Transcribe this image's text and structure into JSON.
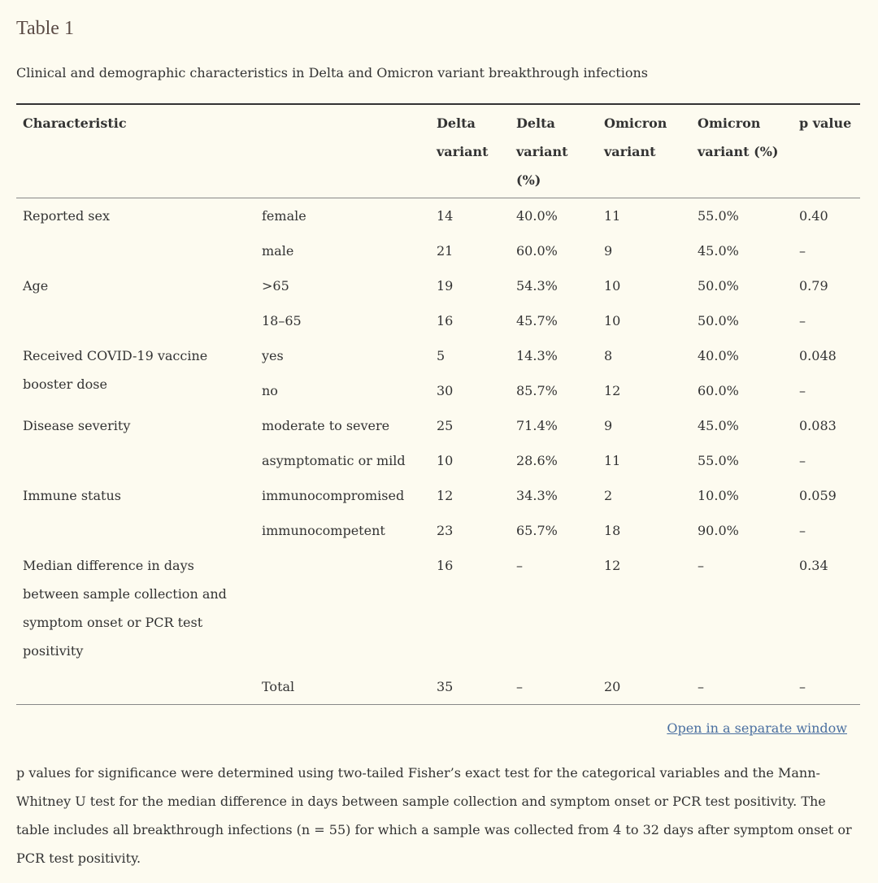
{
  "title": "Table 1",
  "caption": "Clinical and demographic characteristics in Delta and Omicron variant breakthrough infections",
  "headers": [
    "Characteristic",
    "",
    "Delta variant",
    "Delta variant (%)",
    "Omicron variant",
    "Omicron variant (%)",
    "p value"
  ],
  "rows": [
    [
      "Reported sex",
      "female",
      "14",
      "40.0%",
      "11",
      "55.0%",
      "0.40"
    ],
    [
      "",
      "male",
      "21",
      "60.0%",
      "9",
      "45.0%",
      "–"
    ],
    [
      "Age",
      ">65",
      "19",
      "54.3%",
      "10",
      "50.0%",
      "0.79"
    ],
    [
      "",
      "18–65",
      "16",
      "45.7%",
      "10",
      "50.0%",
      "–"
    ],
    [
      "Received COVID-19 vaccine booster dose",
      "yes",
      "5",
      "14.3%",
      "8",
      "40.0%",
      "0.048"
    ],
    [
      "",
      "no",
      "30",
      "85.7%",
      "12",
      "60.0%",
      "–"
    ],
    [
      "Disease severity",
      "moderate to severe",
      "25",
      "71.4%",
      "9",
      "45.0%",
      "0.083"
    ],
    [
      "",
      "asymptomatic or mild",
      "10",
      "28.6%",
      "11",
      "55.0%",
      "–"
    ],
    [
      "Immune status",
      "immunocompromised",
      "12",
      "34.3%",
      "2",
      "10.0%",
      "0.059"
    ],
    [
      "",
      "immunocompetent",
      "23",
      "65.7%",
      "18",
      "90.0%",
      "–"
    ],
    [
      "Median difference in days between sample collection and symptom onset or PCR test positivity",
      "",
      "16",
      "–",
      "12",
      "–",
      "0.34"
    ],
    [
      "",
      "Total",
      "35",
      "–",
      "20",
      "–",
      "–"
    ]
  ],
  "link": "Open in a separate window",
  "footnote": "p values for significance were determined using two-tailed Fisher’s exact test for the categorical variables and the Mann-Whitney U test for the median difference in days between sample collection and symptom onset or PCR test positivity. The table includes all breakthrough infections (n = 55) for which a sample was collected from 4 to 32 days after symptom onset or PCR test positivity."
}
